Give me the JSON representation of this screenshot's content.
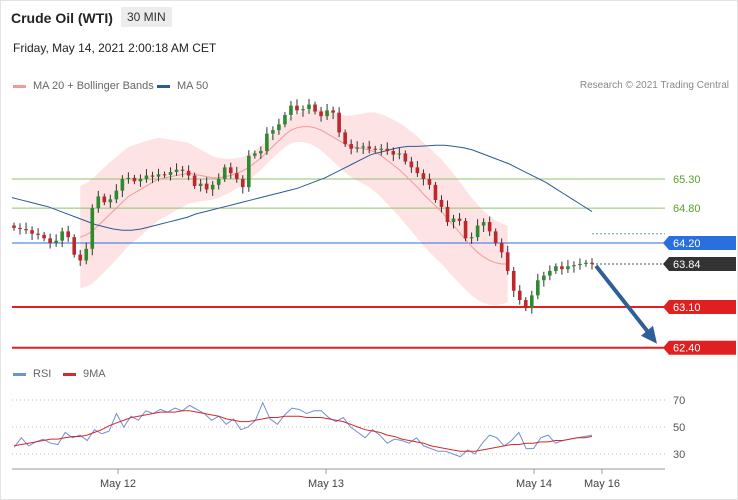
{
  "header": {
    "title": "Crude Oil (WTI)",
    "timeframe": "30 MIN",
    "datetime": "Friday, May 14, 2021 2:00:18 AM CET",
    "copyright": "Research © 2021 Trading Central"
  },
  "legend": {
    "price": [
      {
        "label": "MA 20 + Bollinger Bands",
        "color": "#f19a9a"
      },
      {
        "label": "MA 50",
        "color": "#2c5a96"
      }
    ],
    "rsi": [
      {
        "label": "RSI",
        "color": "#6f8fd6"
      },
      {
        "label": "9MA",
        "color": "#d42a2a"
      }
    ]
  },
  "colors": {
    "up": "#2f8a2f",
    "down": "#c0262c",
    "band": "#fde0e0",
    "ma20": "#f19a9a",
    "ma50": "#2c5a96",
    "rsi": "#6f8fd6",
    "rsi_ma": "#d42a2a",
    "support": "#e02020",
    "resistance_lines": "#8cc46b",
    "pivot": "#2a6fe0",
    "arrow": "#2f5f98",
    "last_price": "#333333"
  },
  "chart_data": {
    "type": "candlestick",
    "instrument": "Crude Oil (WTI)",
    "interval": "30 MIN",
    "ylim": [
      62.2,
      65.75
    ],
    "x_ticks": [
      "May 12",
      "May 13",
      "May 14",
      "May 16"
    ],
    "levels": [
      {
        "label": "65.30",
        "value": 65.3,
        "kind": "resistance",
        "style": "thin-green"
      },
      {
        "label": "64.80",
        "value": 64.8,
        "kind": "resistance",
        "style": "thin-green"
      },
      {
        "label": "64.20",
        "value": 64.2,
        "kind": "pivot",
        "style": "blue-tag"
      },
      {
        "label": "63.84",
        "value": 63.84,
        "kind": "last price",
        "style": "dark-tag"
      },
      {
        "label": "63.10",
        "value": 63.1,
        "kind": "support",
        "style": "red-thick"
      },
      {
        "label": "62.40",
        "value": 62.4,
        "kind": "support",
        "style": "red-thick"
      }
    ],
    "arrow": {
      "from": 63.84,
      "to": 62.4,
      "direction": "down"
    },
    "close": [
      64.46,
      64.44,
      64.42,
      64.36,
      64.34,
      64.28,
      64.2,
      64.24,
      64.4,
      64.3,
      64.0,
      63.9,
      64.1,
      64.8,
      65.0,
      64.9,
      64.95,
      65.1,
      65.3,
      65.32,
      65.26,
      65.3,
      65.36,
      65.34,
      65.38,
      65.37,
      65.42,
      65.46,
      65.44,
      65.36,
      65.18,
      65.22,
      65.12,
      65.2,
      65.3,
      65.5,
      65.4,
      65.3,
      65.16,
      65.7,
      65.74,
      65.78,
      66.08,
      66.14,
      66.24,
      66.4,
      66.56,
      66.48,
      66.5,
      66.58,
      66.46,
      66.38,
      66.48,
      66.44,
      66.1,
      65.9,
      65.82,
      65.84,
      65.86,
      65.82,
      65.8,
      65.82,
      65.78,
      65.72,
      65.74,
      65.6,
      65.5,
      65.4,
      65.3,
      65.2,
      64.94,
      64.82,
      64.56,
      64.62,
      64.58,
      64.28,
      64.3,
      64.5,
      64.56,
      64.4,
      64.2,
      64.04,
      63.72,
      63.38,
      63.22,
      63.08,
      63.3,
      63.56,
      63.64,
      63.72,
      63.8,
      63.75,
      63.8,
      63.82,
      63.84,
      63.86,
      63.84
    ],
    "ma20": [
      null,
      null,
      null,
      null,
      null,
      null,
      null,
      null,
      null,
      null,
      null,
      64.3,
      64.34,
      64.4,
      64.5,
      64.6,
      64.7,
      64.8,
      64.9,
      65.0,
      65.06,
      65.12,
      65.18,
      65.24,
      65.3,
      65.32,
      65.34,
      65.36,
      65.38,
      65.4,
      65.38,
      65.36,
      65.34,
      65.32,
      65.32,
      65.34,
      65.36,
      65.4,
      65.44,
      65.5,
      65.58,
      65.66,
      65.76,
      65.86,
      65.96,
      66.06,
      66.14,
      66.18,
      66.2,
      66.2,
      66.18,
      66.14,
      66.08,
      66.02,
      65.96,
      65.9,
      65.86,
      65.84,
      65.82,
      65.8,
      65.76,
      65.7,
      65.62,
      65.54,
      65.46,
      65.36,
      65.26,
      65.16,
      65.04,
      64.94,
      64.84,
      64.74,
      64.62,
      64.5,
      64.38,
      64.26,
      64.14,
      64.04,
      63.96,
      63.9,
      63.86,
      63.84,
      63.84
    ],
    "ma50": [
      64.98,
      64.94,
      64.9,
      64.86,
      64.82,
      64.76,
      64.7,
      64.64,
      64.58,
      64.52,
      64.48,
      64.44,
      64.42,
      64.42,
      64.44,
      64.48,
      64.52,
      64.56,
      64.6,
      64.64,
      64.7,
      64.74,
      64.78,
      64.82,
      64.86,
      64.9,
      64.94,
      64.98,
      65.02,
      65.06,
      65.1,
      65.14,
      65.2,
      65.26,
      65.32,
      65.4,
      65.48,
      65.56,
      65.64,
      65.72,
      65.76,
      65.8,
      65.84,
      65.86,
      65.86,
      65.87,
      65.88,
      65.88,
      65.86,
      65.84,
      65.8,
      65.74,
      65.68,
      65.62,
      65.56,
      65.48,
      65.4,
      65.32,
      65.24,
      65.14,
      65.04,
      64.94,
      64.84,
      64.74
    ],
    "rsi": {
      "ylim": [
        20,
        75
      ],
      "y_ticks": [
        30,
        50,
        70
      ],
      "rsi": [
        35,
        42,
        36,
        39,
        41,
        38,
        37,
        46,
        42,
        44,
        40,
        48,
        45,
        47,
        60,
        50,
        58,
        55,
        62,
        60,
        63,
        61,
        64,
        62,
        66,
        63,
        60,
        55,
        58,
        52,
        56,
        48,
        50,
        55,
        68,
        56,
        52,
        59,
        64,
        63,
        60,
        62,
        62,
        57,
        54,
        57,
        50,
        46,
        42,
        48,
        44,
        38,
        41,
        40,
        38,
        42,
        36,
        34,
        32,
        32,
        30,
        28,
        33,
        30,
        38,
        44,
        42,
        36,
        40,
        46,
        34,
        34,
        42,
        44,
        38,
        40,
        41,
        42,
        43,
        44
      ],
      "ma": [
        36,
        37,
        38,
        39,
        40,
        41,
        41,
        42,
        43,
        43,
        44,
        46,
        48,
        51,
        53,
        55,
        57,
        58,
        59,
        60,
        61,
        61,
        61,
        62,
        62,
        61,
        60,
        59,
        58,
        56,
        55,
        54,
        54,
        55,
        56,
        57,
        57,
        58,
        58,
        58,
        57,
        57,
        57,
        56,
        55,
        54,
        52,
        50,
        48,
        47,
        46,
        44,
        43,
        41,
        40,
        39,
        38,
        36,
        35,
        34,
        33,
        32,
        32,
        32,
        33,
        34,
        35,
        36,
        37,
        37,
        38,
        38,
        39,
        39,
        40,
        40,
        41,
        42,
        42,
        43
      ]
    }
  }
}
